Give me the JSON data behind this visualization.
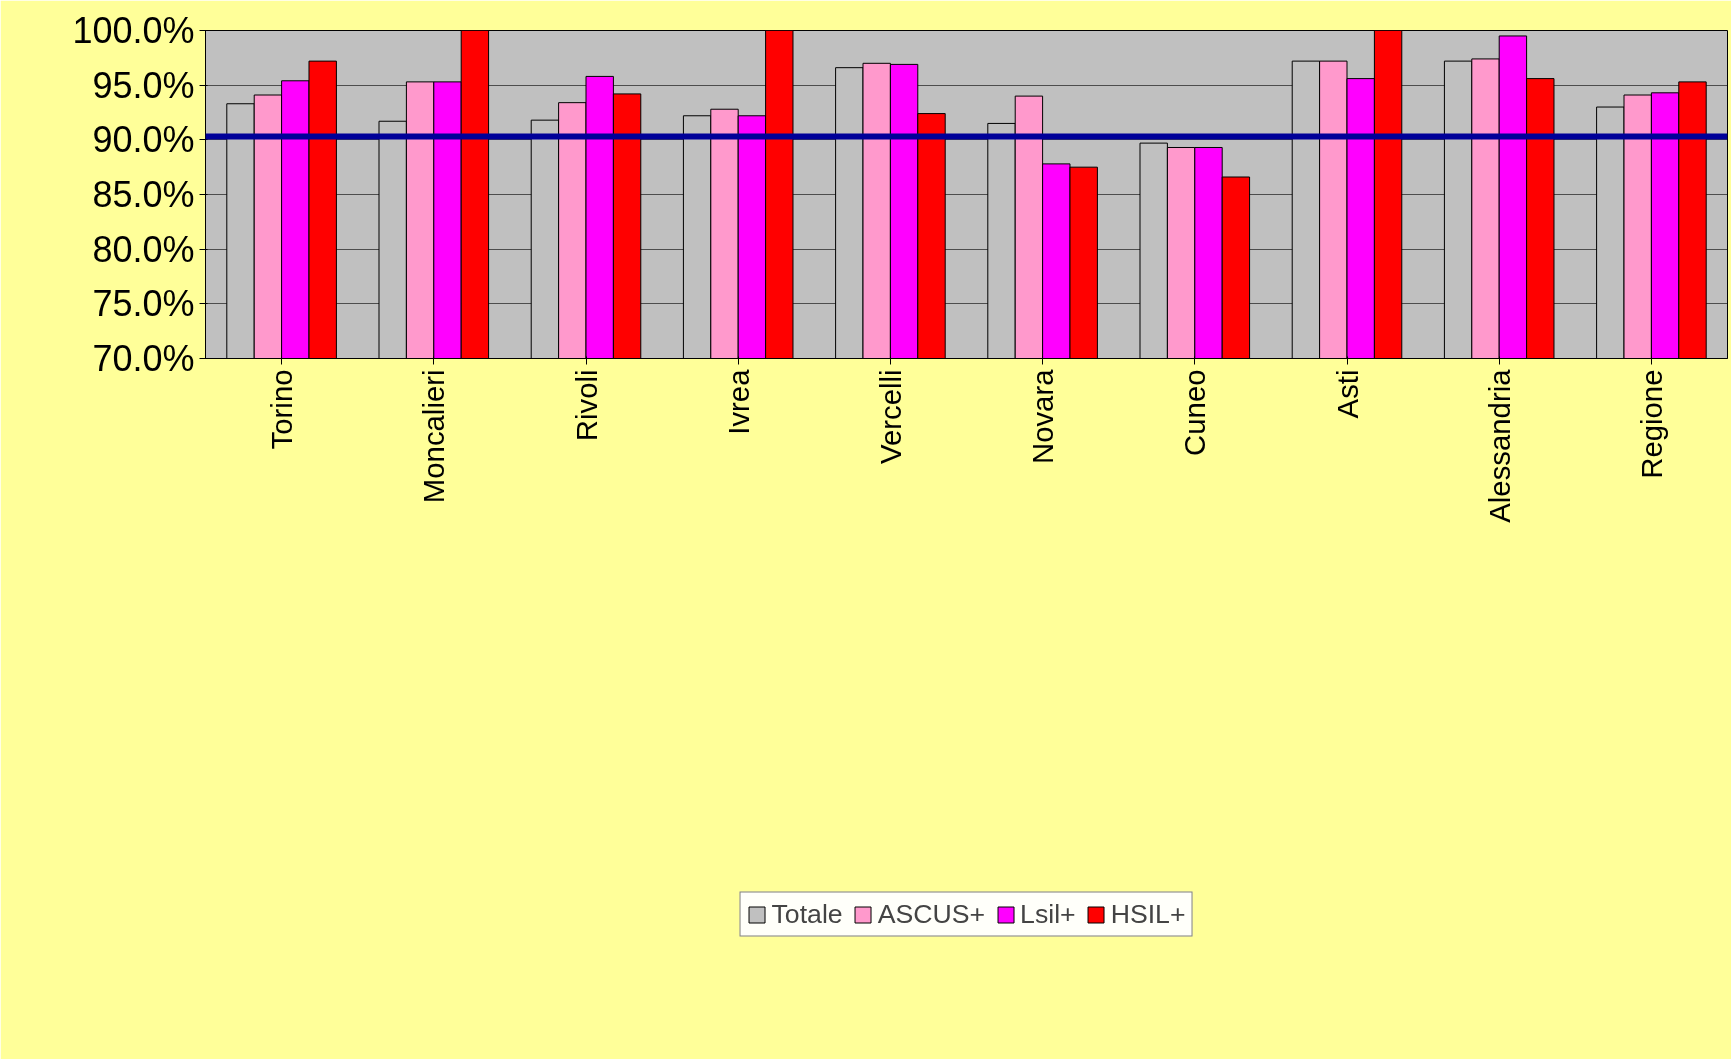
{
  "chart_data": {
    "type": "bar",
    "categories": [
      "Torino",
      "Moncalieri",
      "Rivoli",
      "Ivrea",
      "Vercelli",
      "Novara",
      "Cuneo",
      "Asti",
      "Alessandria",
      "Regione"
    ],
    "series": [
      {
        "name": "Totale",
        "color": "#c0c0c0",
        "values": [
          93.3,
          91.7,
          91.8,
          92.2,
          96.6,
          91.5,
          89.7,
          97.2,
          97.2,
          93.0
        ]
      },
      {
        "name": "ASCUS+",
        "color": "#ff99cc",
        "values": [
          94.1,
          95.3,
          93.4,
          92.8,
          97.0,
          94.0,
          89.3,
          97.2,
          97.4,
          94.1
        ]
      },
      {
        "name": "Lsil+",
        "color": "#ff00ff",
        "values": [
          95.4,
          95.3,
          95.8,
          92.2,
          96.9,
          87.8,
          89.3,
          95.6,
          99.5,
          94.3
        ]
      },
      {
        "name": "HSIL+",
        "color": "#ff0000",
        "values": [
          97.2,
          100,
          94.2,
          100,
          92.4,
          87.5,
          86.6,
          100,
          95.6,
          95.3
        ]
      }
    ],
    "ylim": [
      70,
      100
    ],
    "yticks": [
      {
        "value": 70,
        "label": "70.0%"
      },
      {
        "value": 75,
        "label": "75.0%"
      },
      {
        "value": 80,
        "label": "80.0%"
      },
      {
        "value": 85,
        "label": "85.0%"
      },
      {
        "value": 90,
        "label": "90.0%"
      },
      {
        "value": 95,
        "label": "95.0%"
      },
      {
        "value": 100,
        "label": "100.0%"
      }
    ],
    "ref_lines": [
      {
        "axis": "y",
        "value": 90.3,
        "label": null,
        "color": "#000099"
      }
    ],
    "grid": "y",
    "legend": "bottom"
  }
}
